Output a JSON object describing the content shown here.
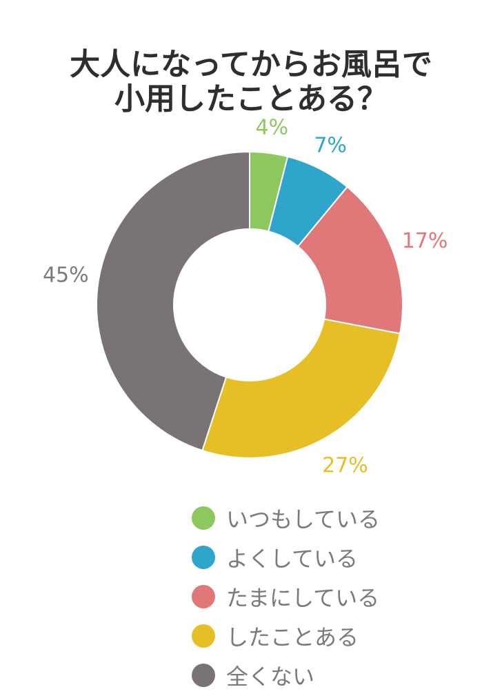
{
  "chart_data": {
    "type": "pie",
    "title_lines": [
      "大人になってからお風呂で",
      "小用したことある？"
    ],
    "categories": [
      "いつもしている",
      "よくしている",
      "たまにしている",
      "したことある",
      "全くない"
    ],
    "values": [
      4,
      7,
      17,
      27,
      45
    ],
    "data_labels": [
      "4%",
      "7%",
      "17%",
      "27%",
      "45%"
    ],
    "colors": [
      "#8dc85e",
      "#2fa5cc",
      "#e07779",
      "#e6bf27",
      "#7a7374"
    ],
    "donut": true,
    "legend_position": "bottom"
  }
}
